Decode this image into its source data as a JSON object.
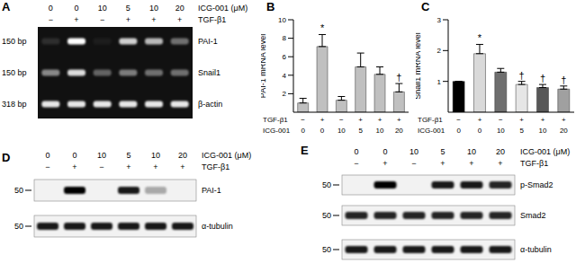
{
  "A": {
    "label": "A",
    "type": "gel",
    "dose_label": "ICG-001 (μM)",
    "tgf_label": "TGF-β1",
    "doses": [
      0,
      0,
      10,
      5,
      10,
      20
    ],
    "tgf": [
      "−",
      "+",
      "−",
      "+",
      "+",
      "+"
    ],
    "rows": [
      {
        "name": "PAI-1",
        "size": "150 bp",
        "intensity": [
          0.12,
          1.0,
          0.05,
          0.8,
          0.7,
          0.4
        ]
      },
      {
        "name": "Snail1",
        "size": "150 bp",
        "intensity": [
          0.5,
          0.85,
          0.35,
          0.45,
          0.4,
          0.4
        ]
      },
      {
        "name": "β-actin",
        "size": "318 bp",
        "intensity": [
          0.9,
          0.9,
          0.9,
          0.9,
          0.9,
          0.9
        ]
      }
    ]
  },
  "chart_data": [
    {
      "label": "B",
      "type": "bar",
      "ylabel": "PAI-1 mRNA level",
      "values": [
        1.0,
        7.1,
        1.3,
        4.9,
        4.1,
        2.2
      ],
      "errors": [
        0.5,
        1.3,
        0.4,
        1.5,
        0.8,
        0.9
      ],
      "annotations": [
        null,
        "*",
        null,
        null,
        null,
        "†"
      ],
      "color": "#c0c0c0",
      "ylim": [
        0,
        10
      ],
      "yticks": [
        0,
        2,
        4,
        6,
        8,
        10
      ],
      "tick_labels": "y",
      "x_rows": [
        {
          "label": "TGF-β1",
          "values": [
            "−",
            "+",
            "−",
            "+",
            "+",
            "+"
          ]
        },
        {
          "label": "ICG-001",
          "values": [
            0,
            0,
            10,
            5,
            10,
            20
          ]
        }
      ]
    },
    {
      "label": "C",
      "type": "bar",
      "ylabel": "Snail1 mRNA level",
      "values": [
        1.0,
        1.9,
        1.3,
        0.9,
        0.8,
        0.75
      ],
      "errors": [
        0,
        0.3,
        0.12,
        0.1,
        0.1,
        0.1
      ],
      "annotations": [
        null,
        "*",
        null,
        "†",
        "†",
        "†"
      ],
      "colors": [
        "#000000",
        "#d9d9d9",
        "#6e6e6e",
        "#e6e6e6",
        "#575757",
        "#a0a0a0"
      ],
      "ylim": [
        0,
        3
      ],
      "yticks": [
        0,
        1,
        2,
        3
      ],
      "tick_labels": "y",
      "x_rows": [
        {
          "label": "TGF-β1",
          "values": [
            "−",
            "+",
            "−",
            "+",
            "+",
            "+"
          ]
        },
        {
          "label": "ICG-001",
          "values": [
            0,
            0,
            10,
            5,
            10,
            20
          ]
        }
      ]
    }
  ],
  "D": {
    "label": "D",
    "type": "blot",
    "dose_label": "ICG-001 (μM)",
    "tgf_label": "TGF-β1",
    "doses": [
      0,
      0,
      10,
      5,
      10,
      20
    ],
    "tgf": [
      "−",
      "+",
      "−",
      "+",
      "+",
      "+"
    ],
    "rows": [
      {
        "name": "PAI-1",
        "marker": 50,
        "intensity": [
          0,
          1.0,
          0,
          0.9,
          0.3,
          0
        ]
      },
      {
        "name": "α-tubulin",
        "marker": 50,
        "intensity": [
          0.9,
          0.9,
          0.9,
          0.9,
          0.9,
          0.9
        ]
      }
    ]
  },
  "E": {
    "label": "E",
    "type": "blot",
    "dose_label": "ICG-001 (μM)",
    "tgf_label": "TGF-β1",
    "doses": [
      0,
      0,
      10,
      5,
      10,
      20
    ],
    "tgf": [
      "−",
      "+",
      "−",
      "+",
      "+",
      "+"
    ],
    "rows": [
      {
        "name": "p-Smad2",
        "marker": 50,
        "intensity": [
          0,
          1.0,
          0,
          0.9,
          0.9,
          0.85
        ]
      },
      {
        "name": "Smad2",
        "marker": 50,
        "intensity": [
          0.85,
          0.85,
          0.85,
          0.85,
          0.85,
          0.85
        ]
      },
      {
        "name": "α-tubulin",
        "marker": 50,
        "intensity": [
          0.9,
          0.9,
          0.9,
          0.9,
          0.9,
          0.9
        ]
      }
    ]
  }
}
